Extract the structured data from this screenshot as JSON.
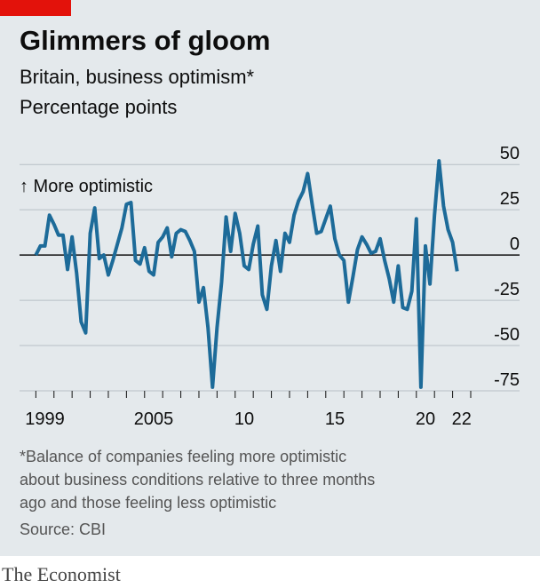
{
  "chart_data": {
    "type": "line",
    "title": "Glimmers of gloom",
    "subtitle": "Britain, business optimism*",
    "unit_label": "Percentage points",
    "annotation": "↑ More optimistic",
    "footnote": [
      "*Balance of companies feeling more optimistic",
      "about business conditions relative to three months",
      "ago and those feeling less optimistic"
    ],
    "source": "Source: CBI",
    "brand": "The Economist",
    "xlim": [
      1998.1,
      2023
    ],
    "xticks": [
      {
        "value": 1999.5,
        "label": "1999"
      },
      {
        "value": 2005.5,
        "label": "2005"
      },
      {
        "value": 2010.5,
        "label": "10"
      },
      {
        "value": 2015.5,
        "label": "15"
      },
      {
        "value": 2020.5,
        "label": "20"
      },
      {
        "value": 2022.5,
        "label": "22"
      }
    ],
    "xminor": [
      1999,
      2000,
      2001,
      2002,
      2003,
      2004,
      2005,
      2006,
      2007,
      2008,
      2009,
      2010,
      2011,
      2012,
      2013,
      2014,
      2015,
      2016,
      2017,
      2018,
      2019,
      2020,
      2021,
      2022,
      2023
    ],
    "ylim": [
      -75,
      55
    ],
    "yticks": [
      50,
      25,
      0,
      -25,
      -50,
      -75
    ],
    "grid": true,
    "series": [
      {
        "color": "#1d6b99",
        "x": [
          1999,
          1999.25,
          1999.5,
          1999.75,
          2000,
          2000.25,
          2000.5,
          2000.75,
          2001,
          2001.25,
          2001.5,
          2001.75,
          2002,
          2002.25,
          2002.5,
          2002.75,
          2003,
          2003.25,
          2003.5,
          2003.75,
          2004,
          2004.25,
          2004.5,
          2004.75,
          2005,
          2005.25,
          2005.5,
          2005.75,
          2006,
          2006.25,
          2006.5,
          2006.75,
          2007,
          2007.25,
          2007.5,
          2007.75,
          2008,
          2008.25,
          2008.5,
          2008.75,
          2009,
          2009.25,
          2009.5,
          2009.75,
          2010,
          2010.25,
          2010.5,
          2010.75,
          2011,
          2011.25,
          2011.5,
          2011.75,
          2012,
          2012.25,
          2012.5,
          2012.75,
          2013,
          2013.25,
          2013.5,
          2013.75,
          2014,
          2014.25,
          2014.5,
          2014.75,
          2015,
          2015.25,
          2015.5,
          2015.75,
          2016,
          2016.25,
          2016.5,
          2016.75,
          2017,
          2017.25,
          2017.5,
          2017.75,
          2018,
          2018.25,
          2018.5,
          2018.75,
          2019,
          2019.25,
          2019.5,
          2019.75,
          2020,
          2020.25,
          2020.5,
          2020.75,
          2021,
          2021.25,
          2021.5,
          2021.75,
          2022,
          2022.25
        ],
        "values": [
          0,
          5,
          5,
          22,
          17,
          11,
          11,
          -8,
          10,
          -10,
          -37,
          -43,
          12,
          26,
          -2,
          0,
          -11,
          -3,
          6,
          15,
          28,
          29,
          -3,
          -5,
          4,
          -9,
          -11,
          7,
          10,
          15,
          -1,
          12,
          14,
          13,
          8,
          2,
          -26,
          -18,
          -40,
          -73,
          -40,
          -15,
          21,
          2,
          23,
          12,
          -6,
          -8,
          6,
          16,
          -22,
          -30,
          -6,
          8,
          -9,
          12,
          7,
          22,
          30,
          35,
          45,
          28,
          12,
          13,
          20,
          27,
          9,
          0,
          -3,
          -26,
          -12,
          3,
          10,
          6,
          1,
          2,
          9,
          -3,
          -13,
          -26,
          -6,
          -29,
          -30,
          -20,
          20,
          -73,
          5,
          -16,
          22,
          52,
          27,
          14,
          7,
          -9
        ]
      }
    ]
  }
}
